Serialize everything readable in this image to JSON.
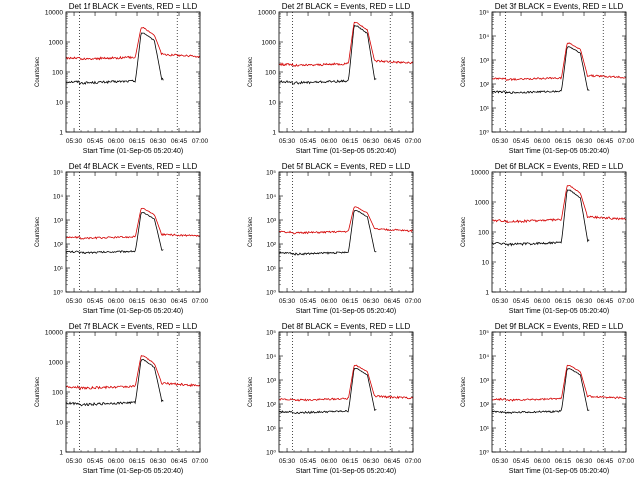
{
  "chart_data": [
    {
      "type": "line",
      "title": "Det 1f BLACK = Events, RED = LLD",
      "ylabel": "Counts/sec",
      "xlabel": "Start Time (01-Sep-05 05:20:40)",
      "x_ticks": [
        "05:30",
        "05:45",
        "06:00",
        "06:15",
        "06:30",
        "06:45",
        "07:00"
      ],
      "xlim": [
        0,
        100
      ],
      "y_scale": "log",
      "ylim": [
        1,
        10000
      ],
      "y_ticks": [
        "1",
        "10",
        "100",
        "1000",
        "10000"
      ],
      "y_tick_values": [
        1,
        10,
        100,
        1000,
        10000
      ],
      "dotted_lines_x": [
        10,
        83
      ],
      "series": [
        {
          "name": "Events",
          "color": "#000000",
          "base": 45,
          "peak": 2000,
          "start_x": 0
        },
        {
          "name": "LLD",
          "color": "#d40000",
          "base": 280,
          "peak": 3000,
          "start_x": -10
        }
      ]
    },
    {
      "type": "line",
      "title": "Det 2f BLACK = Events, RED = LLD",
      "ylabel": "Counts/sec",
      "xlabel": "Start Time (01-Sep-05 05:20:40)",
      "x_ticks": [
        "05:30",
        "05:45",
        "06:00",
        "06:15",
        "06:30",
        "06:45",
        "07:00"
      ],
      "xlim": [
        0,
        100
      ],
      "y_scale": "log",
      "ylim": [
        1,
        10000
      ],
      "y_ticks": [
        "1",
        "10",
        "100",
        "1000",
        "10000"
      ],
      "y_tick_values": [
        1,
        10,
        100,
        1000,
        10000
      ],
      "dotted_lines_x": [
        10,
        83
      ],
      "series": [
        {
          "name": "Events",
          "color": "#000000",
          "base": 45,
          "peak": 3500,
          "start_x": 0
        },
        {
          "name": "LLD",
          "color": "#d40000",
          "base": 170,
          "peak": 4500,
          "start_x": -10
        }
      ]
    },
    {
      "type": "line",
      "title": "Det 3f BLACK = Events, RED = LLD",
      "ylabel": "Counts/sec",
      "xlabel": "Start Time (01-Sep-05 05:20:40)",
      "x_ticks": [
        "05:30",
        "05:45",
        "06:00",
        "06:15",
        "06:30",
        "06:45",
        "07:00"
      ],
      "xlim": [
        0,
        100
      ],
      "y_scale": "log",
      "ylim": [
        1,
        100000
      ],
      "y_ticks": [
        "10⁰",
        "10¹",
        "10²",
        "10³",
        "10⁴",
        "10⁵"
      ],
      "y_tick_values": [
        1,
        10,
        100,
        1000,
        10000,
        100000
      ],
      "dotted_lines_x": [
        10,
        83
      ],
      "series": [
        {
          "name": "Events",
          "color": "#000000",
          "base": 45,
          "peak": 3500,
          "start_x": 0
        },
        {
          "name": "LLD",
          "color": "#d40000",
          "base": 160,
          "peak": 5000,
          "start_x": -10
        }
      ]
    },
    {
      "type": "line",
      "title": "Det 4f BLACK = Events, RED = LLD",
      "ylabel": "Counts/sec",
      "xlabel": "Start Time (01-Sep-05 05:20:40)",
      "x_ticks": [
        "05:30",
        "05:45",
        "06:00",
        "06:15",
        "06:30",
        "06:45",
        "07:00"
      ],
      "xlim": [
        0,
        100
      ],
      "y_scale": "log",
      "ylim": [
        1,
        100000
      ],
      "y_ticks": [
        "10⁰",
        "10¹",
        "10²",
        "10³",
        "10⁴",
        "10⁵"
      ],
      "y_tick_values": [
        1,
        10,
        100,
        1000,
        10000,
        100000
      ],
      "dotted_lines_x": [
        10,
        83
      ],
      "series": [
        {
          "name": "Events",
          "color": "#000000",
          "base": 45,
          "peak": 2000,
          "start_x": 0
        },
        {
          "name": "LLD",
          "color": "#d40000",
          "base": 180,
          "peak": 3000,
          "start_x": -10
        }
      ]
    },
    {
      "type": "line",
      "title": "Det 5f BLACK = Events, RED = LLD",
      "ylabel": "Counts/sec",
      "xlabel": "Start Time (01-Sep-05 05:20:40)",
      "x_ticks": [
        "05:30",
        "05:45",
        "06:00",
        "06:15",
        "06:30",
        "06:45",
        "07:00"
      ],
      "xlim": [
        0,
        100
      ],
      "y_scale": "log",
      "ylim": [
        1,
        100000
      ],
      "y_ticks": [
        "10⁰",
        "10¹",
        "10²",
        "10³",
        "10⁴",
        "10⁵"
      ],
      "y_tick_values": [
        1,
        10,
        100,
        1000,
        10000,
        100000
      ],
      "dotted_lines_x": [
        10,
        83
      ],
      "series": [
        {
          "name": "Events",
          "color": "#000000",
          "base": 40,
          "peak": 2500,
          "start_x": 0
        },
        {
          "name": "LLD",
          "color": "#d40000",
          "base": 300,
          "peak": 3500,
          "start_x": -10
        }
      ]
    },
    {
      "type": "line",
      "title": "Det 6f BLACK = Events, RED = LLD",
      "ylabel": "Counts/sec",
      "xlabel": "Start Time (01-Sep-05 05:20:40)",
      "x_ticks": [
        "05:30",
        "05:45",
        "06:00",
        "06:15",
        "06:30",
        "06:45",
        "07:00"
      ],
      "xlim": [
        0,
        100
      ],
      "y_scale": "log",
      "ylim": [
        1,
        10000
      ],
      "y_ticks": [
        "1",
        "10",
        "100",
        "1000",
        "10000"
      ],
      "y_tick_values": [
        1,
        10,
        100,
        1000,
        10000
      ],
      "dotted_lines_x": [
        10,
        83
      ],
      "series": [
        {
          "name": "Events",
          "color": "#000000",
          "base": 40,
          "peak": 2500,
          "start_x": 0
        },
        {
          "name": "LLD",
          "color": "#d40000",
          "base": 230,
          "peak": 3500,
          "start_x": -10
        }
      ]
    },
    {
      "type": "line",
      "title": "Det 7f BLACK = Events, RED = LLD",
      "ylabel": "Counts/sec",
      "xlabel": "Start Time (01-Sep-05 05:20:40)",
      "x_ticks": [
        "05:30",
        "05:45",
        "06:00",
        "06:15",
        "06:30",
        "06:45",
        "07:00"
      ],
      "xlim": [
        0,
        100
      ],
      "y_scale": "log",
      "ylim": [
        1,
        10000
      ],
      "y_ticks": [
        "1",
        "10",
        "100",
        "1000",
        "10000"
      ],
      "y_tick_values": [
        1,
        10,
        100,
        1000,
        10000
      ],
      "dotted_lines_x": [
        10,
        83
      ],
      "series": [
        {
          "name": "Events",
          "color": "#000000",
          "base": 40,
          "peak": 1200,
          "start_x": 0
        },
        {
          "name": "LLD",
          "color": "#d40000",
          "base": 140,
          "peak": 1600,
          "start_x": -10
        }
      ]
    },
    {
      "type": "line",
      "title": "Det 8f BLACK = Events, RED = LLD",
      "ylabel": "Counts/sec",
      "xlabel": "Start Time (01-Sep-05 05:20:40)",
      "x_ticks": [
        "05:30",
        "05:45",
        "06:00",
        "06:15",
        "06:30",
        "06:45",
        "07:00"
      ],
      "xlim": [
        0,
        100
      ],
      "y_scale": "log",
      "ylim": [
        1,
        100000
      ],
      "y_ticks": [
        "10⁰",
        "10¹",
        "10²",
        "10³",
        "10⁴",
        "10⁵"
      ],
      "y_tick_values": [
        1,
        10,
        100,
        1000,
        10000,
        100000
      ],
      "dotted_lines_x": [
        10,
        83
      ],
      "series": [
        {
          "name": "Events",
          "color": "#000000",
          "base": 45,
          "peak": 3000,
          "start_x": 0
        },
        {
          "name": "LLD",
          "color": "#d40000",
          "base": 150,
          "peak": 4000,
          "start_x": -10
        }
      ]
    },
    {
      "type": "line",
      "title": "Det 9f BLACK = Events, RED = LLD",
      "ylabel": "Counts/sec",
      "xlabel": "Start Time (01-Sep-05 05:20:40)",
      "x_ticks": [
        "05:30",
        "05:45",
        "06:00",
        "06:15",
        "06:30",
        "06:45",
        "07:00"
      ],
      "xlim": [
        0,
        100
      ],
      "y_scale": "log",
      "ylim": [
        1,
        100000
      ],
      "y_ticks": [
        "10⁰",
        "10¹",
        "10²",
        "10³",
        "10⁴",
        "10⁵"
      ],
      "y_tick_values": [
        1,
        10,
        100,
        1000,
        10000,
        100000
      ],
      "dotted_lines_x": [
        10,
        83
      ],
      "series": [
        {
          "name": "Events",
          "color": "#000000",
          "base": 45,
          "peak": 3000,
          "start_x": 0
        },
        {
          "name": "LLD",
          "color": "#d40000",
          "base": 150,
          "peak": 4000,
          "start_x": -10
        }
      ]
    }
  ],
  "colors": {
    "background": "#ffffff",
    "axes": "#000000",
    "events": "#000000",
    "lld": "#d40000"
  }
}
